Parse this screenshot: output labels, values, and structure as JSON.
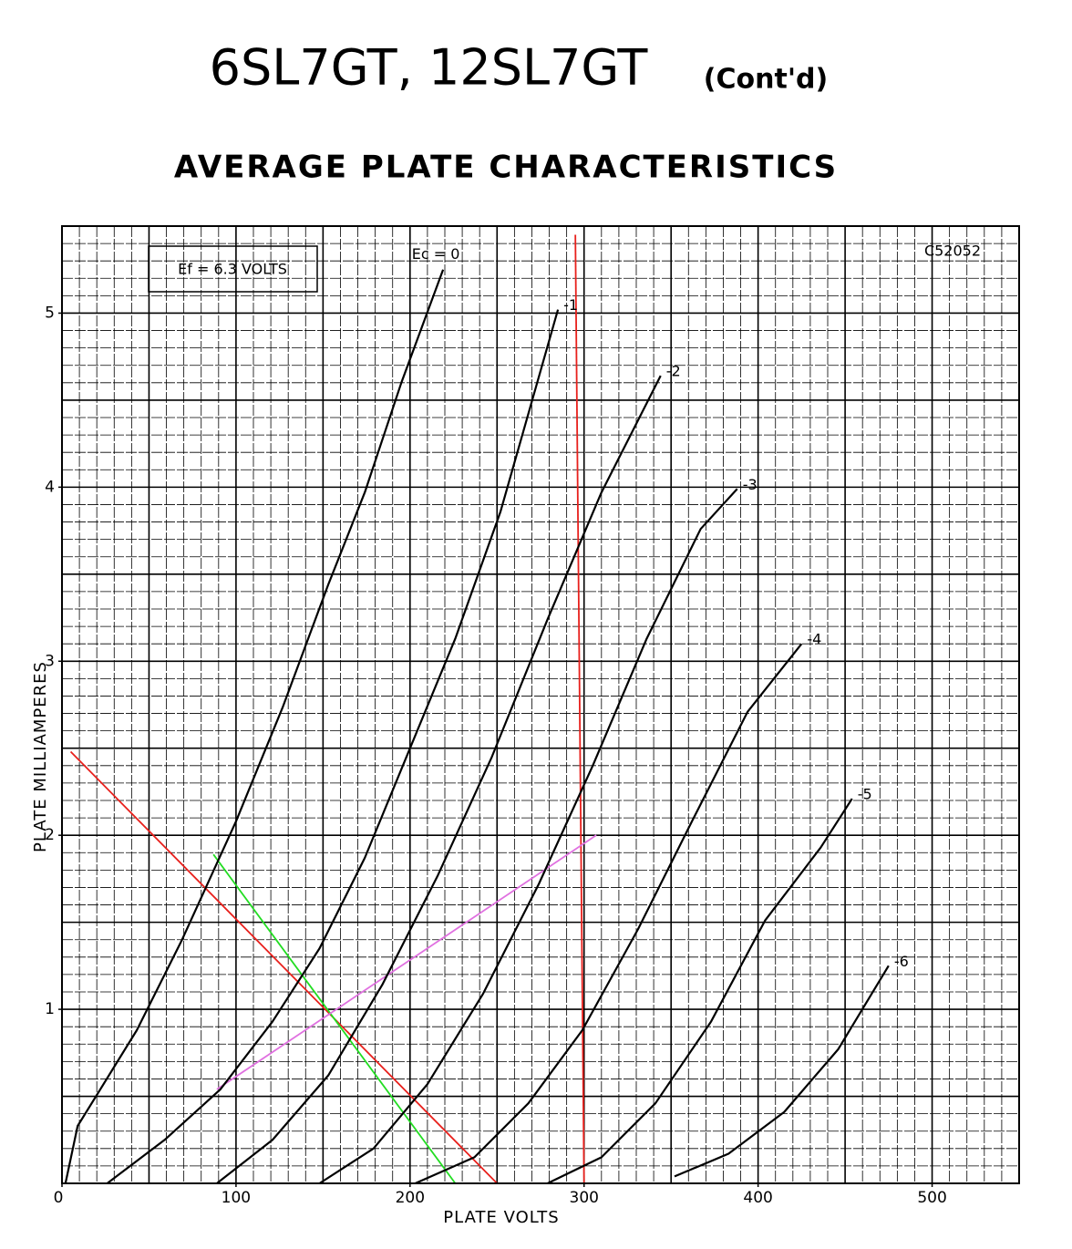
{
  "chart_data": {
    "type": "line",
    "title": "6SL7GT, 12SL7GT",
    "title_suffix": "(Cont'd)",
    "subtitle": "AVERAGE PLATE CHARACTERISTICS",
    "x_label": "PLATE VOLTS",
    "y_label": "PLATE MILLIAMPERES",
    "annotations": [
      "Ef = 6.3 VOLTS",
      "C52052"
    ],
    "xlim": [
      0,
      550
    ],
    "ylim": [
      0,
      5.5
    ],
    "xticks": [
      0,
      100,
      200,
      300,
      400,
      500
    ],
    "yticks": [
      1,
      2,
      3,
      4,
      5
    ],
    "grid": true,
    "minor_xstep": 10,
    "minor_ystep": 0.1,
    "series": [
      {
        "name": "Ec = 0",
        "color": "#000000",
        "x": [
          2,
          9,
          22,
          43,
          69,
          100,
          127,
          153,
          174,
          195,
          219
        ],
        "values": [
          0,
          0.33,
          0.54,
          0.88,
          1.4,
          2.08,
          2.74,
          3.44,
          3.97,
          4.6,
          5.25
        ]
      },
      {
        "name": "-1",
        "color": "#000000",
        "x": [
          26,
          59,
          91,
          121,
          148,
          174,
          200,
          226,
          252,
          285
        ],
        "values": [
          0,
          0.25,
          0.54,
          0.93,
          1.35,
          1.87,
          2.5,
          3.13,
          3.86,
          5.02
        ]
      },
      {
        "name": "-2",
        "color": "#000000",
        "x": [
          89,
          121,
          153,
          184,
          216,
          247,
          279,
          310,
          344
        ],
        "values": [
          0,
          0.25,
          0.62,
          1.14,
          1.77,
          2.45,
          3.24,
          3.97,
          4.64
        ]
      },
      {
        "name": "-3",
        "color": "#000000",
        "x": [
          148,
          179,
          210,
          242,
          274,
          305,
          336,
          367,
          388
        ],
        "values": [
          0,
          0.2,
          0.57,
          1.09,
          1.72,
          2.4,
          3.13,
          3.76,
          3.99
        ]
      },
      {
        "name": "-4",
        "color": "#000000",
        "x": [
          203,
          237,
          268,
          299,
          331,
          362,
          394,
          425
        ],
        "values": [
          0,
          0.15,
          0.46,
          0.88,
          1.46,
          2.08,
          2.71,
          3.1
        ]
      },
      {
        "name": "-5",
        "color": "#000000",
        "x": [
          279,
          310,
          341,
          373,
          404,
          436,
          454
        ],
        "values": [
          0,
          0.15,
          0.46,
          0.93,
          1.51,
          1.93,
          2.21
        ]
      },
      {
        "name": "-6",
        "color": "#000000",
        "x": [
          352,
          383,
          415,
          446,
          475
        ],
        "values": [
          0.04,
          0.17,
          0.41,
          0.77,
          1.25
        ]
      }
    ],
    "lines": [
      {
        "color": "#e8201c",
        "x": [
          5,
          250
        ],
        "values": [
          2.48,
          0
        ]
      },
      {
        "color": "#e8201c",
        "x": [
          295,
          300
        ],
        "values": [
          5.45,
          0
        ]
      },
      {
        "color": "#22dd22",
        "x": [
          87,
          226
        ],
        "values": [
          1.89,
          0
        ]
      },
      {
        "color": "#e070e0",
        "x": [
          89,
          307
        ],
        "values": [
          0.54,
          2.0
        ]
      }
    ]
  }
}
